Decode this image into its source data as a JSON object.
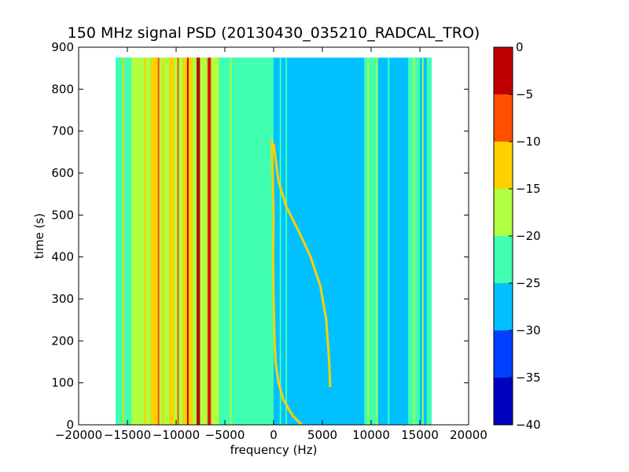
{
  "chart_data": {
    "type": "heatmap",
    "title": "150 MHz signal PSD (20130430_035210_RADCAL_TRO)",
    "xlabel": "frequency (Hz)",
    "ylabel": "time (s)",
    "xlim": [
      -20000,
      20000
    ],
    "ylim": [
      0,
      900
    ],
    "x_ticks": [
      -20000,
      -15000,
      -10000,
      -5000,
      0,
      5000,
      10000,
      15000,
      20000
    ],
    "y_ticks": [
      0,
      100,
      200,
      300,
      400,
      500,
      600,
      700,
      800,
      900
    ],
    "data_extent": {
      "x": [
        -16200,
        16200
      ],
      "y": [
        0,
        875
      ]
    },
    "background_level": -27.5,
    "colorbar": {
      "levels": [
        -40,
        -35,
        -30,
        -25,
        -20,
        -15,
        -10,
        -5,
        0
      ],
      "tick_labels": [
        "0",
        "−5",
        "−10",
        "−15",
        "−20",
        "−25",
        "−30",
        "−35",
        "−40"
      ],
      "colors": [
        "#0000c0",
        "#0040ff",
        "#00c0ff",
        "#40ffb0",
        "#b0ff40",
        "#ffd000",
        "#ff5000",
        "#c00000"
      ]
    },
    "vertical_bands": [
      {
        "x": [
          -16200,
          -14600
        ],
        "level": -22.5
      },
      {
        "x": [
          -14600,
          -12600
        ],
        "level": -20
      },
      {
        "x": [
          -12600,
          -11900
        ],
        "level": -12.5
      },
      {
        "x": [
          -11900,
          -10700
        ],
        "level": -17.5
      },
      {
        "x": [
          -10700,
          -10200
        ],
        "level": -12.5
      },
      {
        "x": [
          -10200,
          -9300
        ],
        "level": -17.5
      },
      {
        "x": [
          -9300,
          -8300
        ],
        "level": -12.5
      },
      {
        "x": [
          -8300,
          -7900
        ],
        "level": -17.5
      },
      {
        "x": [
          -7900,
          -7550
        ],
        "level": -2.5
      },
      {
        "x": [
          -7550,
          -6800
        ],
        "level": -17.5
      },
      {
        "x": [
          -6800,
          -6400
        ],
        "level": -7.5
      },
      {
        "x": [
          -6400,
          -5600
        ],
        "level": -20
      },
      {
        "x": [
          -5600,
          -3600
        ],
        "level": -22.5
      },
      {
        "x": [
          -3600,
          0
        ],
        "level": -22.5
      },
      {
        "x": [
          9300,
          10700
        ],
        "level": -22.5
      },
      {
        "x": [
          13800,
          15000
        ],
        "level": -22.5
      },
      {
        "x": [
          15700,
          16200
        ],
        "level": -22.5
      }
    ],
    "narrow_lines": [
      {
        "x": -15400,
        "level": -12.5
      },
      {
        "x": -13200,
        "level": -12.5
      },
      {
        "x": -11800,
        "level": -7.5
      },
      {
        "x": -11300,
        "level": -12.5
      },
      {
        "x": -9800,
        "level": -7.5
      },
      {
        "x": -8900,
        "level": -12.5
      },
      {
        "x": -8800,
        "level": -2.5
      },
      {
        "x": -7700,
        "level": 0
      },
      {
        "x": -6600,
        "level": -2.5
      },
      {
        "x": -4400,
        "level": -17.5
      },
      {
        "x": 700,
        "level": -22.5
      },
      {
        "x": 1300,
        "level": -22.5
      },
      {
        "x": 9700,
        "level": -17.5
      },
      {
        "x": 10600,
        "level": -17.5
      },
      {
        "x": 11800,
        "level": -22.5
      },
      {
        "x": 14400,
        "level": -17.5
      },
      {
        "x": 15300,
        "level": -17.5
      }
    ],
    "traces": [
      {
        "name": "",
        "level": -12.5,
        "points": [
          [
            2900,
            0
          ],
          [
            2000,
            20
          ],
          [
            1000,
            60
          ],
          [
            500,
            100
          ],
          [
            200,
            150
          ],
          [
            100,
            200
          ],
          [
            0,
            300
          ],
          [
            -50,
            400
          ],
          [
            0,
            500
          ],
          [
            -100,
            600
          ],
          [
            -200,
            680
          ]
        ]
      },
      {
        "name": "",
        "level": -15,
        "points": [
          [
            5800,
            90
          ],
          [
            5700,
            150
          ],
          [
            5400,
            250
          ],
          [
            4800,
            330
          ],
          [
            3800,
            400
          ],
          [
            2600,
            460
          ],
          [
            1300,
            520
          ],
          [
            500,
            580
          ],
          [
            0,
            670
          ]
        ]
      }
    ]
  }
}
